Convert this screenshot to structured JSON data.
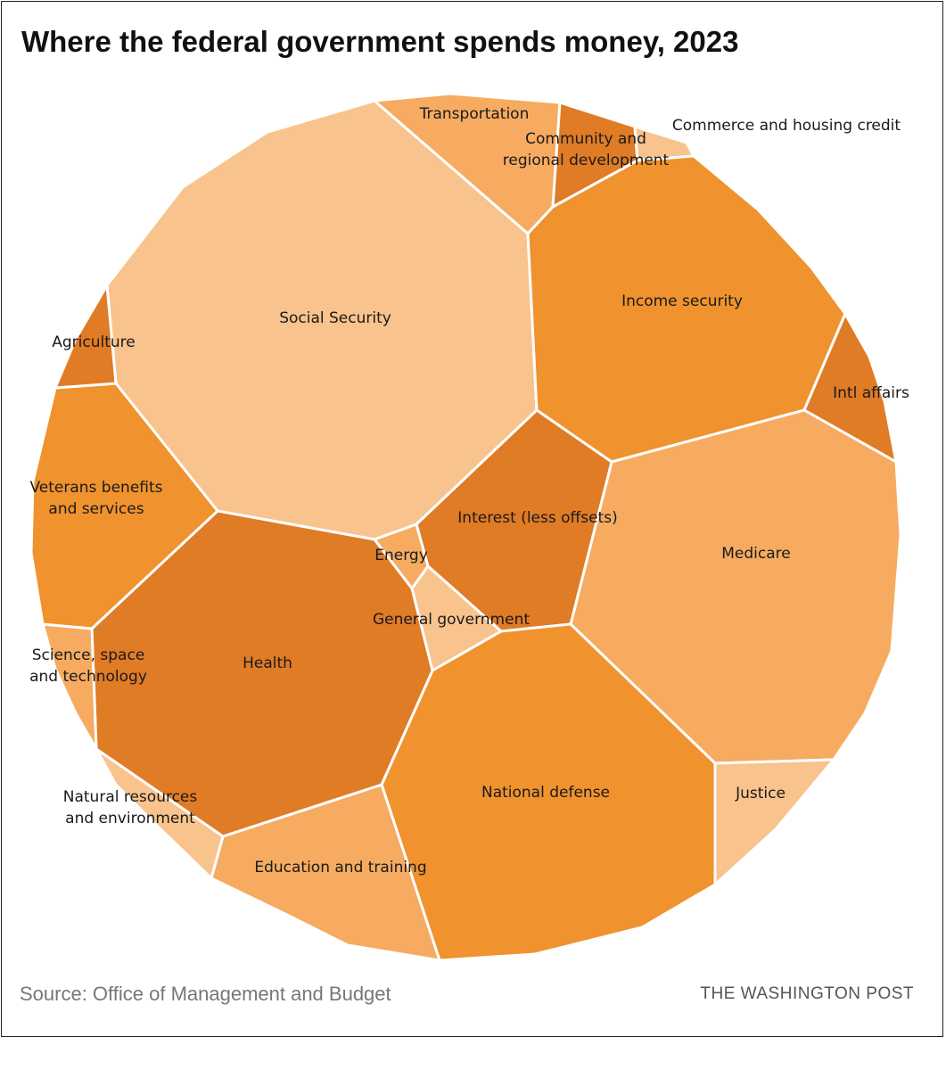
{
  "colors": {
    "light": "#f9c38d",
    "medium": "#f6ab60",
    "strong": "#f0922e",
    "dark": "#e07b26",
    "border": "#ffffff",
    "text": "#1a1a1a"
  },
  "chart_data": {
    "type": "voronoi-treemap",
    "title": "Where the federal government spends money, 2023",
    "source": "Source: Office of Management and Budget",
    "credit": "THE WASHINGTON POST",
    "categories": [
      {
        "id": "social-security",
        "label": [
          "Social Security"
        ],
        "tone": "light"
      },
      {
        "id": "transportation",
        "label": [
          "Transportation"
        ],
        "tone": "medium"
      },
      {
        "id": "community",
        "label": [
          "Community and",
          "regional development"
        ],
        "tone": "dark"
      },
      {
        "id": "commerce",
        "label": [
          "Commerce and housing credit"
        ],
        "tone": "light"
      },
      {
        "id": "income-security",
        "label": [
          "Income security"
        ],
        "tone": "strong"
      },
      {
        "id": "intl-affairs",
        "label": [
          "Intl affairs"
        ],
        "tone": "dark"
      },
      {
        "id": "medicare",
        "label": [
          "Medicare"
        ],
        "tone": "medium"
      },
      {
        "id": "interest",
        "label": [
          "Interest (less offsets)"
        ],
        "tone": "dark"
      },
      {
        "id": "energy",
        "label": [
          "Energy"
        ],
        "tone": "medium"
      },
      {
        "id": "general-government",
        "label": [
          "General government"
        ],
        "tone": "light"
      },
      {
        "id": "justice",
        "label": [
          "Justice"
        ],
        "tone": "light"
      },
      {
        "id": "national-defense",
        "label": [
          "National defense"
        ],
        "tone": "strong"
      },
      {
        "id": "education",
        "label": [
          "Education and training"
        ],
        "tone": "medium"
      },
      {
        "id": "health",
        "label": [
          "Health"
        ],
        "tone": "dark"
      },
      {
        "id": "natural-resources",
        "label": [
          "Natural resources",
          "and environment"
        ],
        "tone": "light"
      },
      {
        "id": "science",
        "label": [
          "Science, space",
          "and technology"
        ],
        "tone": "medium"
      },
      {
        "id": "veterans",
        "label": [
          "Veterans benefits",
          "and services"
        ],
        "tone": "strong"
      },
      {
        "id": "agriculture",
        "label": [
          "Agriculture"
        ],
        "tone": "dark"
      }
    ]
  }
}
